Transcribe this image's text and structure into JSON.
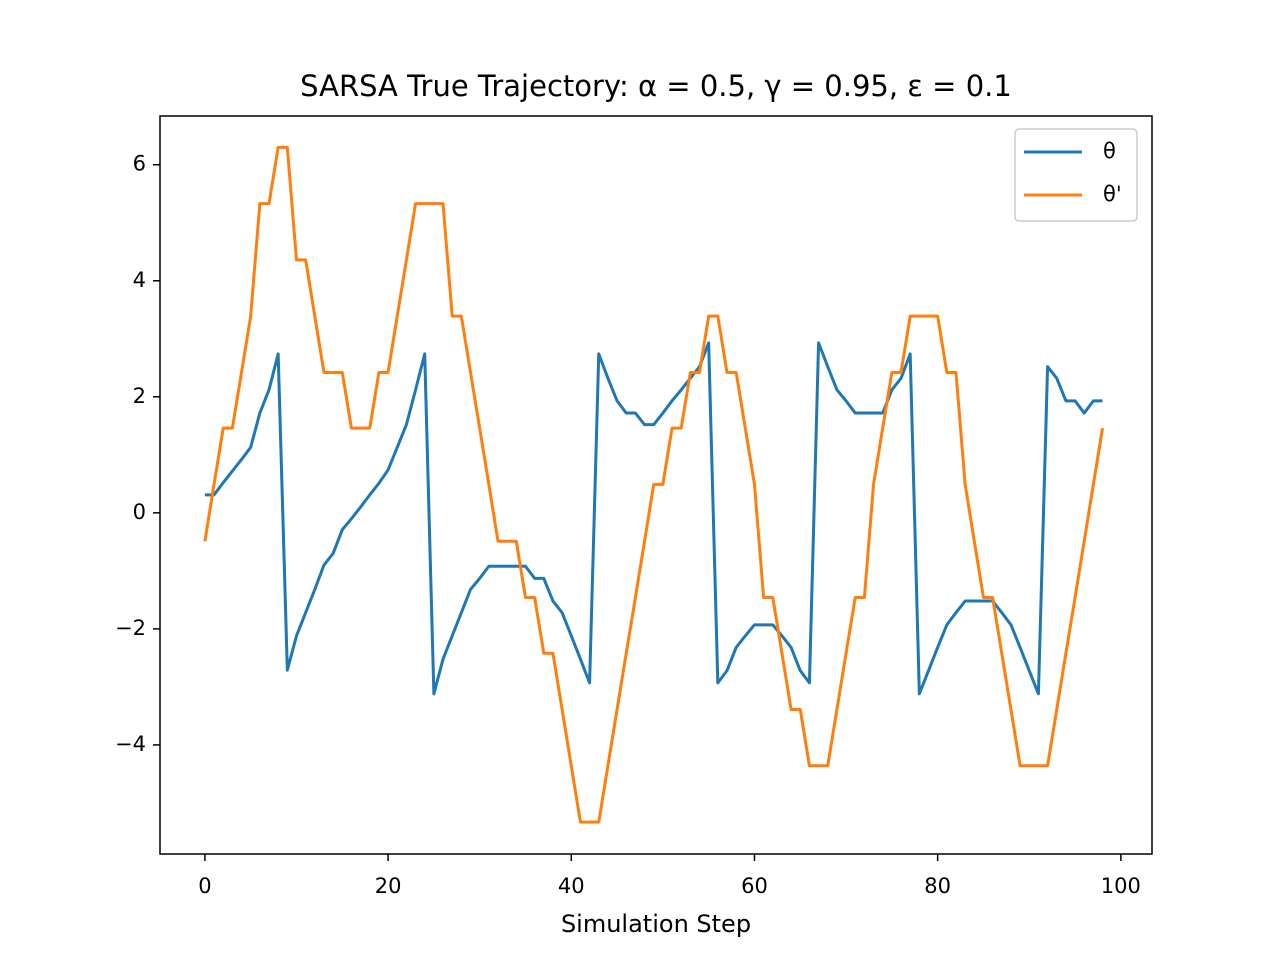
{
  "chart_data": {
    "type": "line",
    "title": "SARSA True Trajectory: α = 0.5, γ = 0.95, ε = 0.1",
    "x_label": "Simulation Step",
    "x": [
      0,
      1,
      2,
      3,
      4,
      5,
      6,
      7,
      8,
      9,
      10,
      11,
      12,
      13,
      14,
      15,
      16,
      17,
      18,
      19,
      20,
      21,
      22,
      23,
      24,
      25,
      26,
      27,
      28,
      29,
      30,
      31,
      32,
      33,
      34,
      35,
      36,
      37,
      38,
      39,
      40,
      41,
      42,
      43,
      44,
      45,
      46,
      47,
      48,
      49,
      50,
      51,
      52,
      53,
      54,
      55,
      56,
      57,
      58,
      59,
      60,
      61,
      62,
      63,
      64,
      65,
      66,
      67,
      68,
      69,
      70,
      71,
      72,
      73,
      74,
      75,
      76,
      77,
      78,
      79,
      80,
      81,
      82,
      83,
      84,
      85,
      86,
      87,
      88,
      89,
      90,
      91,
      92,
      93,
      94,
      95,
      96,
      97,
      98
    ],
    "series": [
      {
        "name": "θ",
        "color": "#1f77b4",
        "values": [
          0.31,
          0.31,
          0.52,
          0.72,
          0.92,
          1.13,
          1.72,
          2.12,
          2.74,
          -2.71,
          -2.12,
          -1.72,
          -1.32,
          -0.9,
          -0.7,
          -0.29,
          -0.1,
          0.1,
          0.31,
          0.51,
          0.74,
          1.13,
          1.52,
          2.12,
          2.74,
          -3.12,
          -2.52,
          -2.12,
          -1.72,
          -1.32,
          -1.13,
          -0.92,
          -0.92,
          -0.92,
          -0.92,
          -0.92,
          -1.13,
          -1.13,
          -1.52,
          -1.72,
          -2.12,
          -2.52,
          -2.93,
          2.74,
          2.32,
          1.93,
          1.72,
          1.72,
          1.52,
          1.52,
          1.72,
          1.93,
          2.12,
          2.32,
          2.52,
          2.93,
          -2.93,
          -2.72,
          -2.32,
          -2.12,
          -1.93,
          -1.93,
          -1.93,
          -2.12,
          -2.32,
          -2.72,
          -2.93,
          2.93,
          2.52,
          2.12,
          1.93,
          1.72,
          1.72,
          1.72,
          1.72,
          2.12,
          2.32,
          2.74,
          -3.12,
          -2.72,
          -2.32,
          -1.93,
          -1.72,
          -1.52,
          -1.52,
          -1.52,
          -1.52,
          -1.72,
          -1.93,
          -2.32,
          -2.72,
          -3.12,
          2.52,
          2.32,
          1.93,
          1.93,
          1.72,
          1.93,
          1.93
        ]
      },
      {
        "name": "θ'",
        "color": "#ff7f0e",
        "values": [
          -0.49,
          0.49,
          1.46,
          1.46,
          2.42,
          3.39,
          5.33,
          5.33,
          6.3,
          6.3,
          4.36,
          4.36,
          3.39,
          2.42,
          2.42,
          2.42,
          1.46,
          1.46,
          1.46,
          2.42,
          2.42,
          3.39,
          4.36,
          5.33,
          5.33,
          5.33,
          5.33,
          3.39,
          3.39,
          2.42,
          1.46,
          0.49,
          -0.49,
          -0.49,
          -0.49,
          -1.46,
          -1.46,
          -2.42,
          -2.42,
          -3.39,
          -4.36,
          -5.33,
          -5.33,
          -5.33,
          -4.36,
          -3.39,
          -2.42,
          -1.46,
          -0.49,
          0.49,
          0.49,
          1.46,
          1.46,
          2.42,
          2.42,
          3.39,
          3.39,
          2.42,
          2.42,
          1.46,
          0.49,
          -1.46,
          -1.46,
          -2.42,
          -3.39,
          -3.39,
          -4.36,
          -4.36,
          -4.36,
          -3.39,
          -2.42,
          -1.46,
          -1.46,
          0.49,
          1.46,
          2.42,
          2.42,
          3.39,
          3.39,
          3.39,
          3.39,
          2.42,
          2.42,
          0.49,
          -0.49,
          -1.46,
          -1.46,
          -2.42,
          -3.39,
          -4.36,
          -4.36,
          -4.36,
          -4.36,
          -3.39,
          -2.42,
          -1.46,
          -0.49,
          0.49,
          1.46
        ]
      }
    ],
    "xlim": [
      -4.9,
      103.4
    ],
    "ylim": [
      -5.88,
      6.84
    ],
    "xticks": [
      0,
      20,
      40,
      60,
      80,
      100
    ],
    "yticks": [
      {
        "value": -4,
        "label": "−4"
      },
      {
        "value": -2,
        "label": "−2"
      },
      0,
      2,
      4,
      6
    ],
    "legend": "upper right"
  }
}
